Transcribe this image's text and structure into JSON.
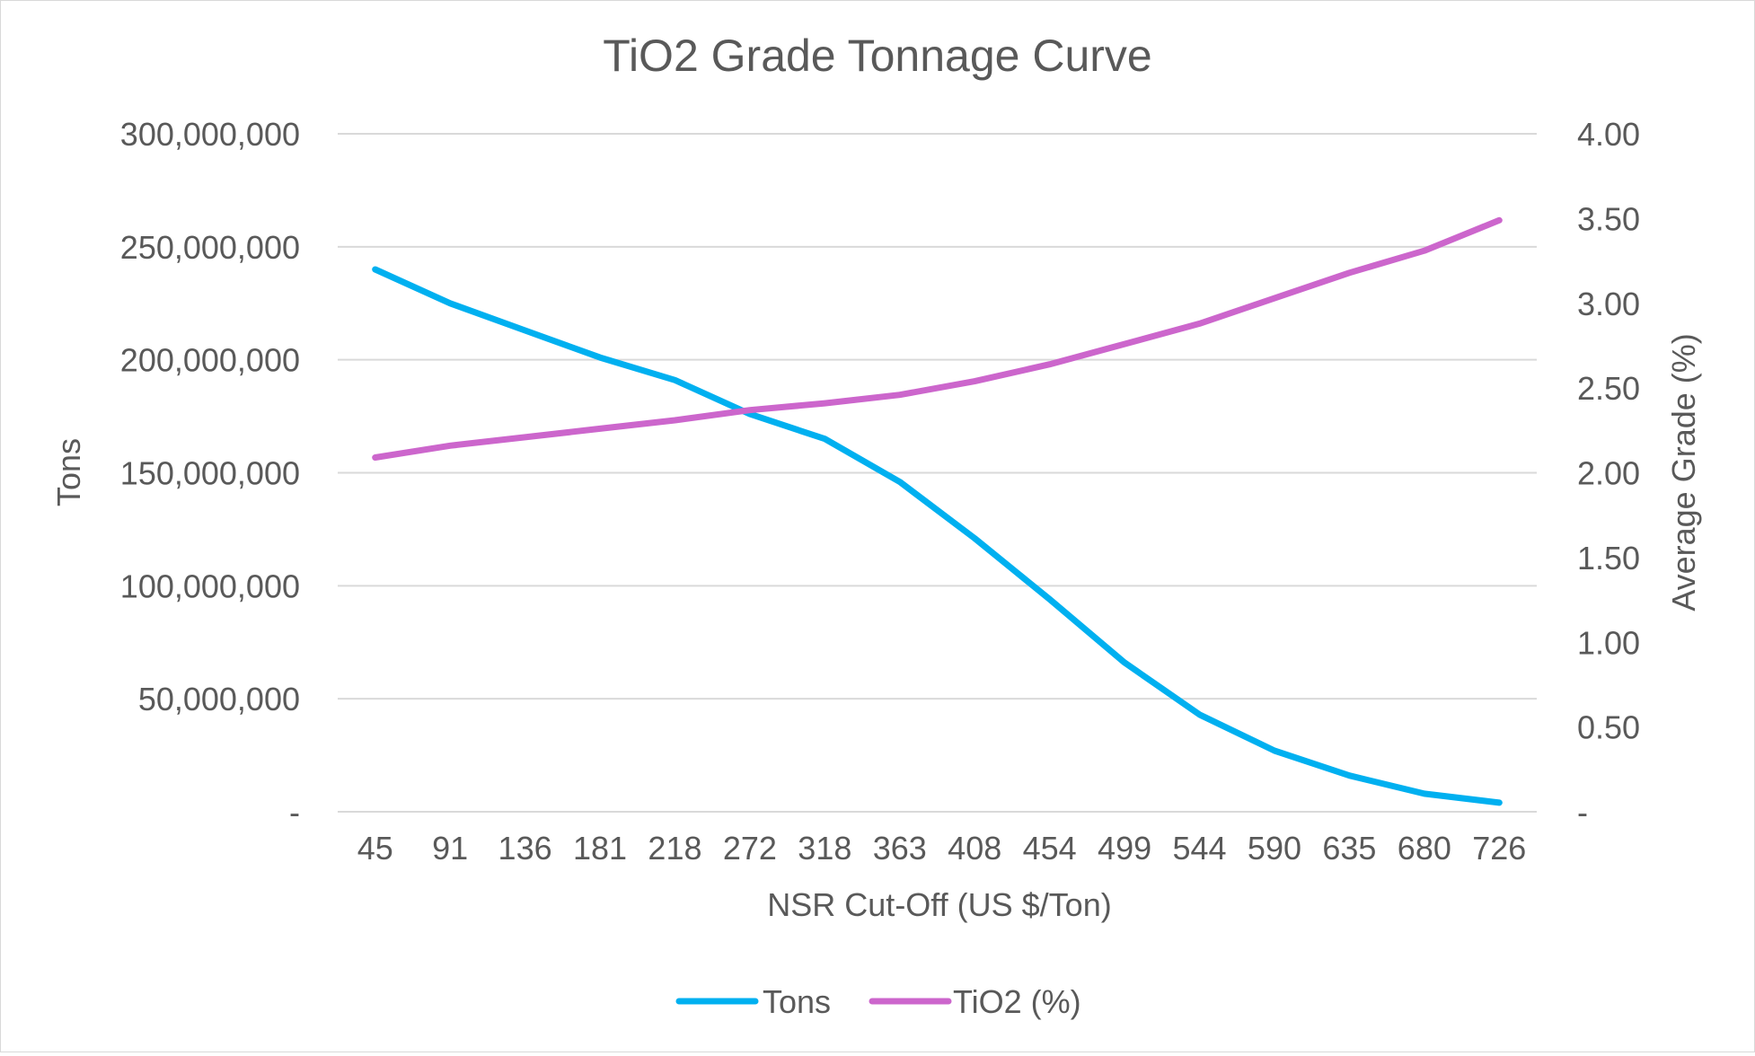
{
  "chart_data": {
    "type": "line",
    "title": "TiO2 Grade Tonnage Curve",
    "xlabel": "NSR Cut-Off (US $/Ton)",
    "ylabel": "Tons",
    "y2label": "Average Grade (%)",
    "categories": [
      "45",
      "91",
      "136",
      "181",
      "218",
      "272",
      "318",
      "363",
      "408",
      "454",
      "499",
      "544",
      "590",
      "635",
      "680",
      "726"
    ],
    "ylim": [
      0,
      300000000
    ],
    "y2lim": [
      0,
      4
    ],
    "y_ticks": [
      {
        "value": 0,
        "label": "-"
      },
      {
        "value": 50000000,
        "label": "50,000,000"
      },
      {
        "value": 100000000,
        "label": "100,000,000"
      },
      {
        "value": 150000000,
        "label": "150,000,000"
      },
      {
        "value": 200000000,
        "label": "200,000,000"
      },
      {
        "value": 250000000,
        "label": "250,000,000"
      },
      {
        "value": 300000000,
        "label": "300,000,000"
      }
    ],
    "y2_ticks": [
      {
        "value": 0,
        "label": "-"
      },
      {
        "value": 0.5,
        "label": "0.50"
      },
      {
        "value": 1.0,
        "label": "1.00"
      },
      {
        "value": 1.5,
        "label": "1.50"
      },
      {
        "value": 2.0,
        "label": "2.00"
      },
      {
        "value": 2.5,
        "label": "2.50"
      },
      {
        "value": 3.0,
        "label": "3.00"
      },
      {
        "value": 3.5,
        "label": "3.50"
      },
      {
        "value": 4.0,
        "label": "4.00"
      }
    ],
    "grid": true,
    "legend_position": "bottom-center",
    "series": [
      {
        "name": "Tons",
        "axis": "left",
        "color": "#00b0f0",
        "values": [
          240000000,
          225000000,
          213000000,
          201000000,
          191000000,
          176000000,
          165000000,
          146000000,
          121000000,
          94000000,
          66000000,
          43000000,
          27000000,
          16000000,
          8000000,
          4000000
        ]
      },
      {
        "name": "TiO2 (%)",
        "axis": "right",
        "color": "#cc66cc",
        "values": [
          2.09,
          2.16,
          2.21,
          2.26,
          2.31,
          2.37,
          2.41,
          2.46,
          2.54,
          2.64,
          2.76,
          2.88,
          3.03,
          3.18,
          3.31,
          3.49
        ]
      }
    ]
  }
}
